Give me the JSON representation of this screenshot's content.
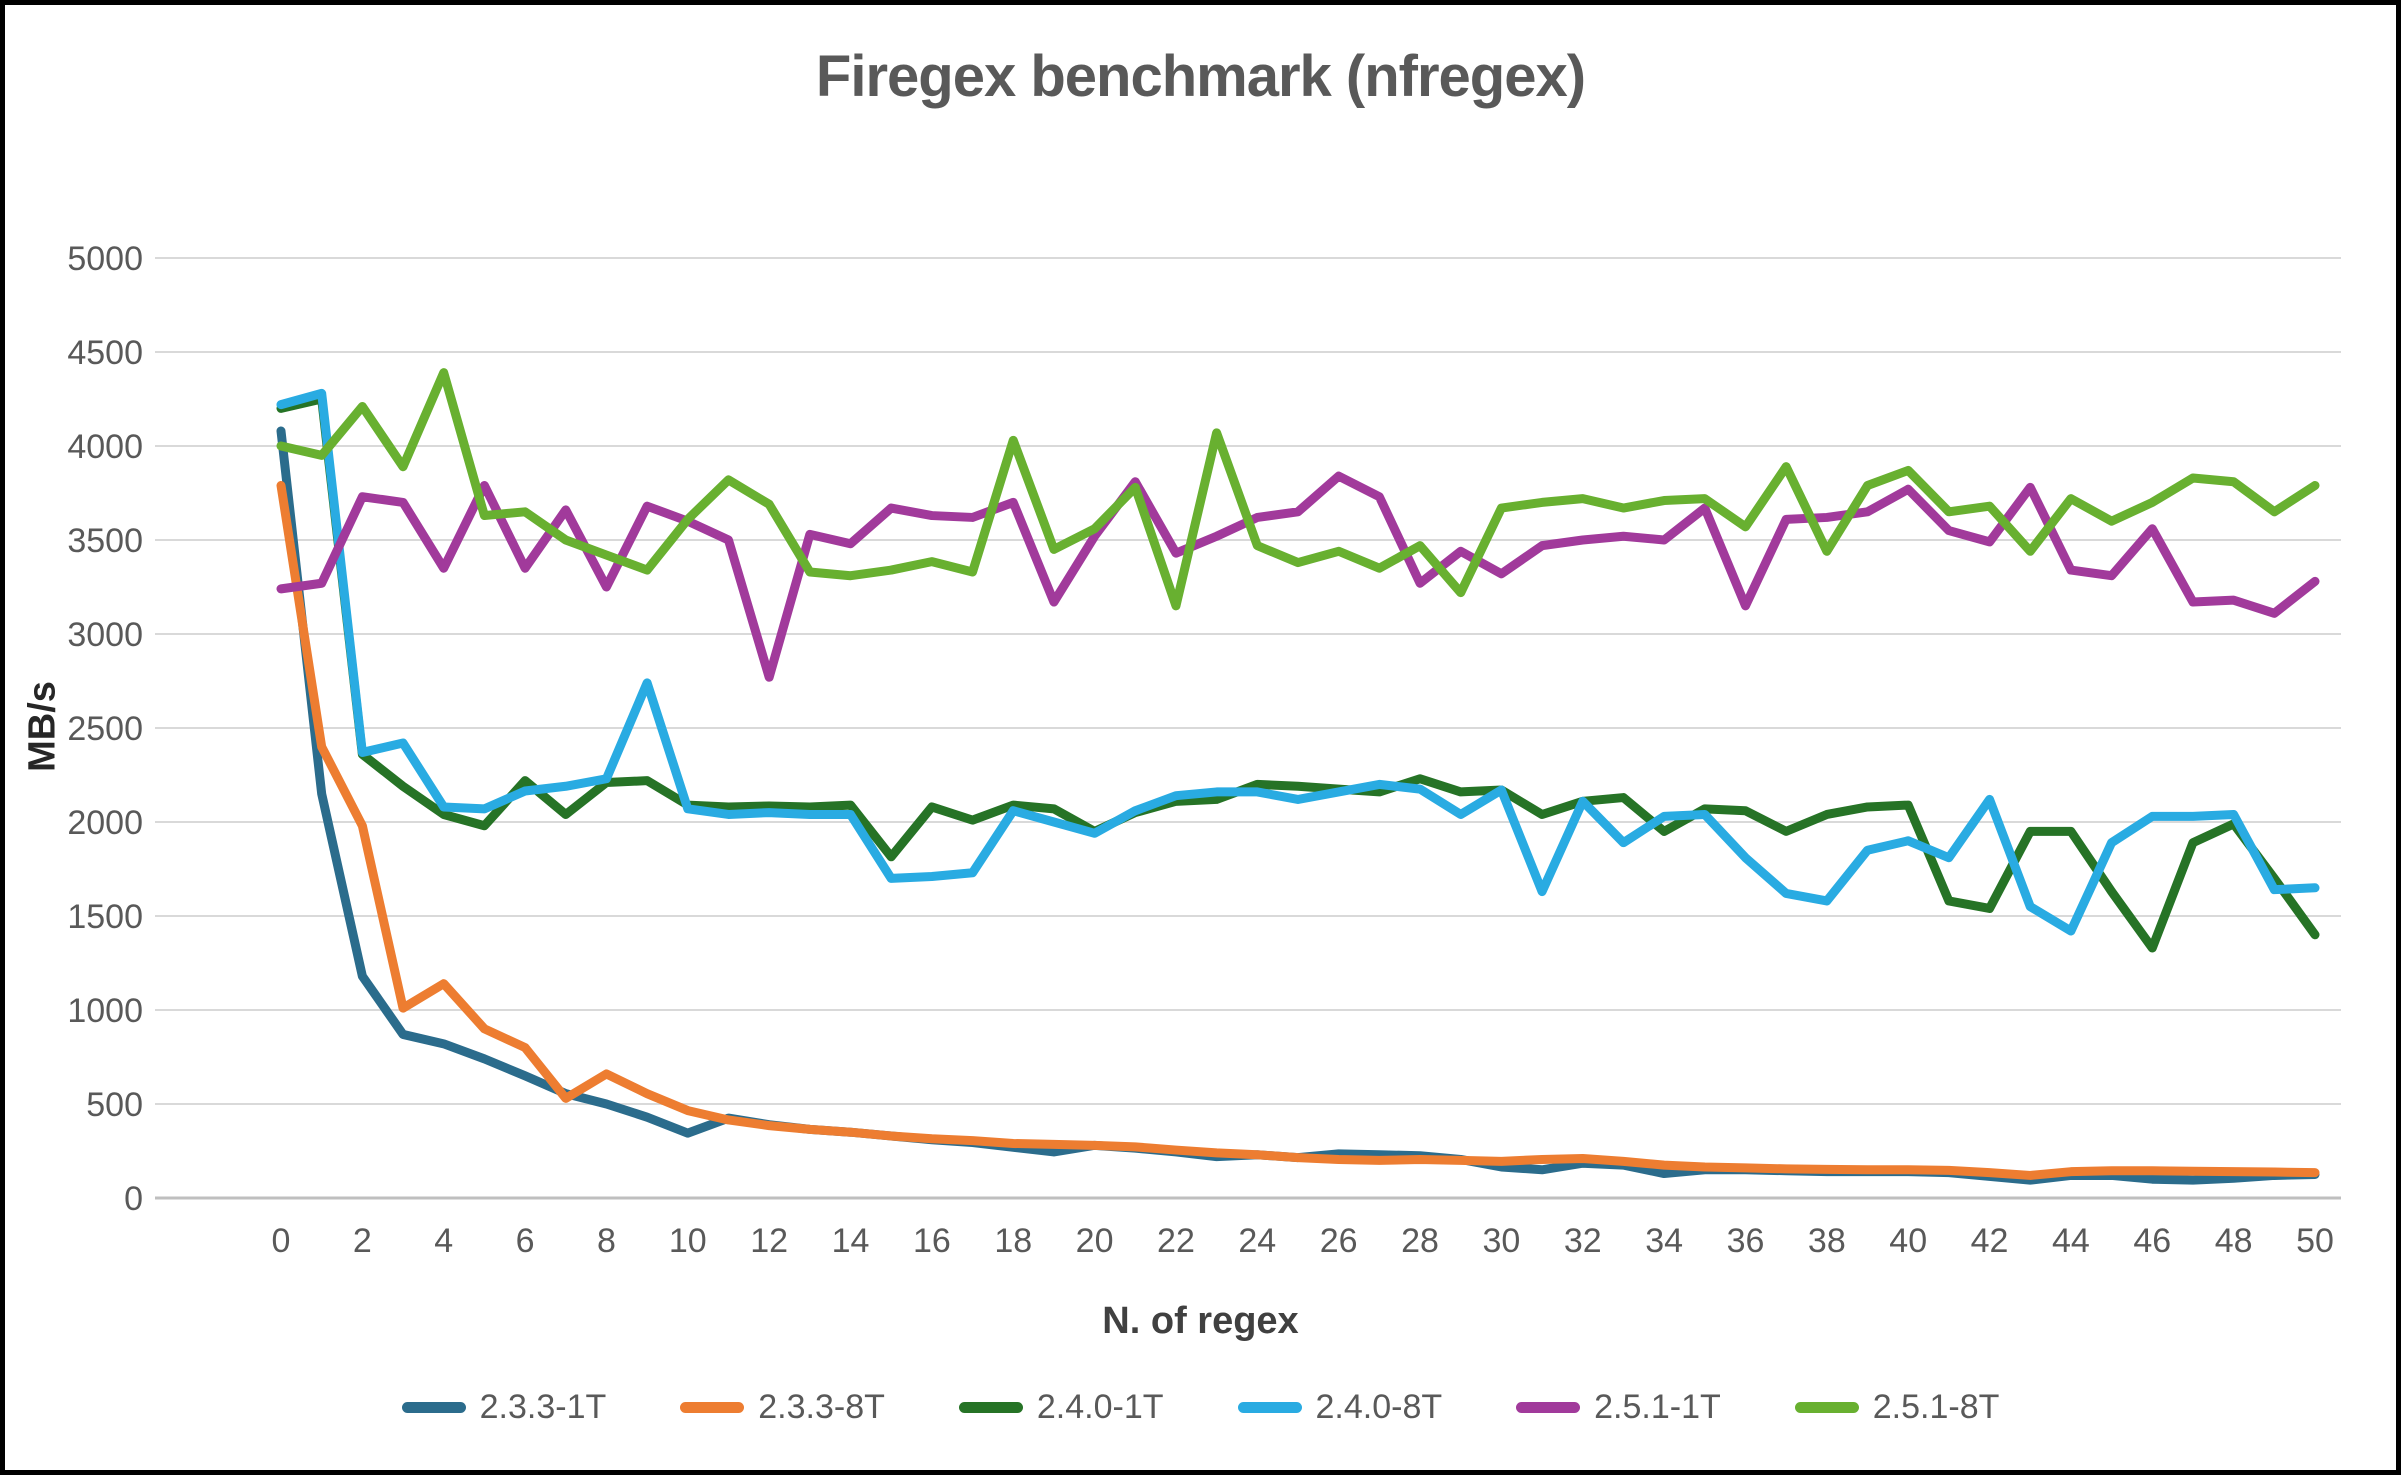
{
  "title": "Firegex benchmark (nfregex)",
  "axes": {
    "x_label": "N. of regex",
    "y_label": "MB/s",
    "y_ticks": [
      0,
      500,
      1000,
      1500,
      2000,
      2500,
      3000,
      3500,
      4000,
      4500,
      5000
    ],
    "x_ticks": [
      0,
      2,
      4,
      6,
      8,
      10,
      12,
      14,
      16,
      18,
      20,
      22,
      24,
      26,
      28,
      30,
      32,
      34,
      36,
      38,
      40,
      42,
      44,
      46,
      48,
      50
    ]
  },
  "colors": {
    "grid": "#D9D9D9",
    "axis_line": "#BFBFBF",
    "title_text": "#595959",
    "tick_text": "#595959"
  },
  "chart_data": {
    "type": "line",
    "title": "Firegex benchmark (nfregex)",
    "xlabel": "N. of regex",
    "ylabel": "MB/s",
    "xlim": [
      0,
      50
    ],
    "ylim": [
      0,
      5000
    ],
    "grid": "horizontal",
    "legend_position": "bottom",
    "x": [
      0,
      1,
      2,
      3,
      4,
      5,
      6,
      7,
      8,
      9,
      10,
      11,
      12,
      13,
      14,
      15,
      16,
      17,
      18,
      19,
      20,
      21,
      22,
      23,
      24,
      25,
      26,
      27,
      28,
      29,
      30,
      31,
      32,
      33,
      34,
      35,
      36,
      37,
      38,
      39,
      40,
      41,
      42,
      43,
      44,
      45,
      46,
      47,
      48,
      49,
      50
    ],
    "series": [
      {
        "name": "2.3.3-1T",
        "color": "#2B6C8C",
        "values": [
          4080,
          2150,
          1180,
          870,
          820,
          740,
          650,
          555,
          500,
          430,
          345,
          425,
          390,
          365,
          350,
          330,
          310,
          295,
          270,
          245,
          280,
          265,
          245,
          220,
          230,
          215,
          235,
          230,
          225,
          205,
          165,
          150,
          185,
          175,
          130,
          150,
          150,
          145,
          140,
          140,
          140,
          135,
          115,
          95,
          120,
          120,
          100,
          95,
          105,
          120,
          125
        ]
      },
      {
        "name": "2.3.3-8T",
        "color": "#ED7D31",
        "values": [
          3790,
          2400,
          1980,
          1010,
          1140,
          900,
          800,
          530,
          660,
          555,
          465,
          415,
          385,
          365,
          350,
          330,
          315,
          305,
          290,
          285,
          280,
          272,
          255,
          240,
          230,
          215,
          205,
          200,
          205,
          200,
          195,
          205,
          210,
          195,
          175,
          165,
          160,
          155,
          152,
          150,
          150,
          147,
          135,
          120,
          140,
          145,
          145,
          142,
          140,
          138,
          135
        ]
      },
      {
        "name": "2.4.0-1T",
        "color": "#267326",
        "values": [
          4200,
          4250,
          2360,
          2190,
          2040,
          1980,
          2220,
          2040,
          2210,
          2220,
          2090,
          2080,
          2085,
          2080,
          2090,
          1815,
          2080,
          2010,
          2090,
          2070,
          1950,
          2050,
          2110,
          2120,
          2200,
          2190,
          2175,
          2160,
          2230,
          2160,
          2170,
          2040,
          2110,
          2130,
          1950,
          2070,
          2060,
          1950,
          2040,
          2080,
          2090,
          1580,
          1540,
          1950,
          1950,
          1630,
          1330,
          1890,
          1990,
          1700,
          1400
        ]
      },
      {
        "name": "2.4.0-8T",
        "color": "#29ABE2",
        "values": [
          4220,
          4280,
          2370,
          2420,
          2080,
          2070,
          2165,
          2190,
          2230,
          2740,
          2070,
          2040,
          2050,
          2040,
          2040,
          1700,
          1710,
          1730,
          2060,
          2000,
          1940,
          2060,
          2140,
          2160,
          2160,
          2120,
          2160,
          2200,
          2175,
          2040,
          2170,
          1630,
          2110,
          1890,
          2030,
          2040,
          1810,
          1620,
          1580,
          1850,
          1900,
          1810,
          2120,
          1550,
          1420,
          1890,
          2030,
          2030,
          2040,
          1640,
          1650
        ]
      },
      {
        "name": "2.5.1-1T",
        "color": "#A13A9B",
        "values": [
          3240,
          3270,
          3730,
          3700,
          3350,
          3790,
          3350,
          3660,
          3250,
          3680,
          3600,
          3500,
          2770,
          3530,
          3480,
          3670,
          3630,
          3620,
          3700,
          3170,
          3520,
          3810,
          3430,
          3520,
          3620,
          3650,
          3840,
          3730,
          3270,
          3440,
          3320,
          3470,
          3500,
          3520,
          3500,
          3670,
          3150,
          3610,
          3620,
          3650,
          3770,
          3550,
          3490,
          3780,
          3340,
          3310,
          3560,
          3170,
          3180,
          3110,
          3280
        ]
      },
      {
        "name": "2.5.1-8T",
        "color": "#68B030",
        "values": [
          4000,
          3950,
          4210,
          3890,
          4390,
          3630,
          3650,
          3500,
          3420,
          3340,
          3610,
          3820,
          3690,
          3330,
          3310,
          3340,
          3385,
          3330,
          4030,
          3450,
          3560,
          3780,
          3150,
          4070,
          3470,
          3380,
          3440,
          3350,
          3470,
          3220,
          3670,
          3700,
          3720,
          3670,
          3710,
          3720,
          3570,
          3890,
          3440,
          3790,
          3870,
          3650,
          3680,
          3440,
          3720,
          3600,
          3700,
          3830,
          3810,
          3650,
          3790
        ]
      }
    ]
  },
  "legend": {
    "items": [
      {
        "label": "2.3.3-1T",
        "color": "#2B6C8C"
      },
      {
        "label": "2.3.3-8T",
        "color": "#ED7D31"
      },
      {
        "label": "2.4.0-1T",
        "color": "#267326"
      },
      {
        "label": "2.4.0-8T",
        "color": "#29ABE2"
      },
      {
        "label": "2.5.1-1T",
        "color": "#A13A9B"
      },
      {
        "label": "2.5.1-8T",
        "color": "#68B030"
      }
    ]
  }
}
